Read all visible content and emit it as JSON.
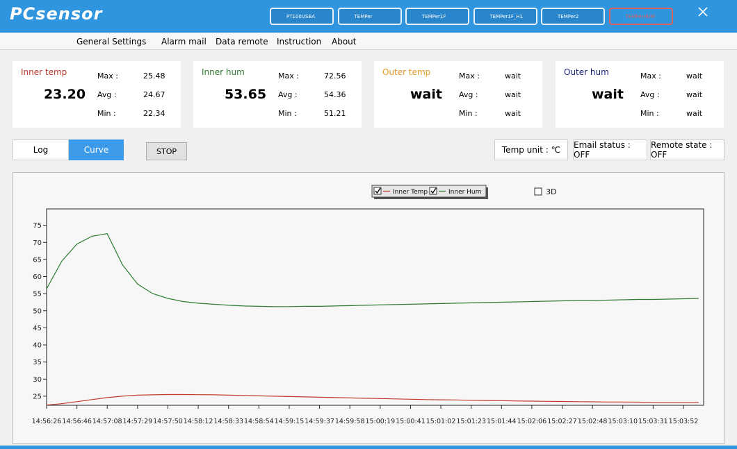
{
  "header": {
    "logo": "PCsensor",
    "devices": [
      "PT100USBA",
      "TEMPer",
      "TEMPer1F",
      "TEMPer1F_H1",
      "TEMPer2",
      "TEMPerHUM"
    ]
  },
  "menu": [
    "General Settings",
    "Alarm mail",
    "Data remote",
    "Instruction",
    "About"
  ],
  "cards": [
    {
      "label": "Inner temp",
      "value": "23.20",
      "stats": [
        {
          "label": "Max :",
          "value": "25.48"
        },
        {
          "label": "Avg :",
          "value": "24.67"
        },
        {
          "label": "Min :",
          "value": "22.34"
        }
      ]
    },
    {
      "label": "Inner hum",
      "value": "53.65",
      "stats": [
        {
          "label": "Max :",
          "value": "72.56"
        },
        {
          "label": "Avg :",
          "value": "54.36"
        },
        {
          "label": "Min :",
          "value": "51.21"
        }
      ]
    },
    {
      "label": "Outer temp",
      "value": "wait",
      "stats": [
        {
          "label": "Max :",
          "value": "wait"
        },
        {
          "label": "Avg :",
          "value": "wait"
        },
        {
          "label": "Min :",
          "value": "wait"
        }
      ]
    },
    {
      "label": "Outer hum",
      "value": "wait",
      "stats": [
        {
          "label": "Max :",
          "value": "wait"
        },
        {
          "label": "Avg :",
          "value": "wait"
        },
        {
          "label": "Min :",
          "value": "wait"
        }
      ]
    }
  ],
  "controls": {
    "tabs": [
      "Log",
      "Curve"
    ],
    "stop": "STOP",
    "status": [
      "Temp unit : ℃",
      "Email status : OFF",
      "Remote state : OFF"
    ]
  },
  "chart_data": {
    "type": "line",
    "categories": [
      "14:56:26",
      null,
      "14:56:46",
      null,
      "14:57:08",
      null,
      "14:57:29",
      null,
      "14:57:50",
      null,
      "14:58:12",
      null,
      "14:58:33",
      null,
      "14:58:54",
      null,
      "14:59:15",
      null,
      "14:59:37",
      null,
      "14:59:58",
      null,
      "15:00:19",
      null,
      "15:00:41",
      null,
      "15:01:02",
      null,
      "15:01:23",
      null,
      "15:01:44",
      null,
      "15:02:06",
      null,
      "15:02:27",
      null,
      "15:02:48",
      null,
      "15:03:10",
      null,
      "15:03:31",
      null,
      "15:03:52",
      null
    ],
    "series": [
      {
        "name": "Inner Temp",
        "color": "#c0392b",
        "values": [
          22.4,
          22.8,
          23.4,
          24.0,
          24.6,
          25.0,
          25.3,
          25.4,
          25.48,
          25.48,
          25.45,
          25.4,
          25.3,
          25.2,
          25.1,
          25.0,
          24.9,
          24.8,
          24.7,
          24.6,
          24.5,
          24.4,
          24.3,
          24.2,
          24.1,
          24.0,
          23.95,
          23.9,
          23.8,
          23.75,
          23.7,
          23.6,
          23.55,
          23.5,
          23.45,
          23.4,
          23.35,
          23.3,
          23.3,
          23.25,
          23.2,
          23.2,
          23.2,
          23.2
        ]
      },
      {
        "name": "Inner Hum",
        "color": "#2e7d32",
        "values": [
          56.4,
          64.5,
          69.5,
          71.8,
          72.56,
          63.5,
          57.8,
          55.0,
          53.6,
          52.7,
          52.2,
          51.9,
          51.6,
          51.4,
          51.3,
          51.2,
          51.21,
          51.3,
          51.3,
          51.4,
          51.5,
          51.6,
          51.7,
          51.8,
          51.9,
          52.0,
          52.1,
          52.2,
          52.3,
          52.4,
          52.5,
          52.6,
          52.7,
          52.8,
          52.9,
          53.0,
          53.0,
          53.1,
          53.2,
          53.3,
          53.3,
          53.4,
          53.5,
          53.6
        ]
      }
    ],
    "ylim": [
      22.34,
      79.8
    ],
    "yticks": [
      25,
      30,
      35,
      40,
      45,
      50,
      55,
      60,
      65,
      70,
      75
    ],
    "toggle_3d": "3D"
  }
}
